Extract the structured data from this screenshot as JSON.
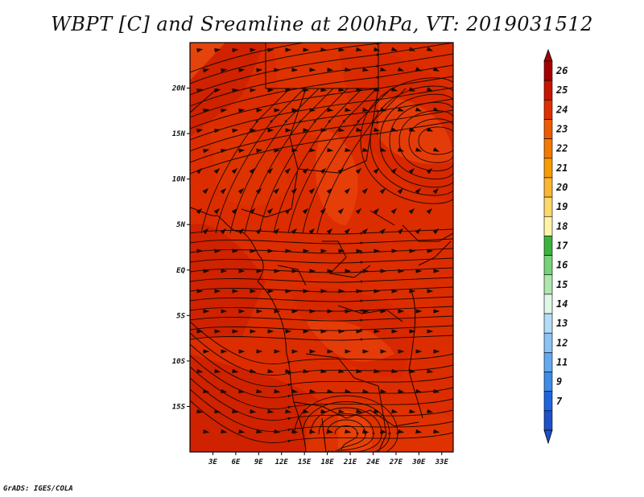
{
  "title": "WBPT [C] and Sreamline at 200hPa, VT: 2019031512",
  "credit": "GrADS: IGES/COLA",
  "chart_data": {
    "type": "heatmap",
    "variable": "WBPT [C]",
    "overlay": "Sreamline",
    "level": "200hPa",
    "valid_time": "2019031512",
    "x_ticks": [
      "3E",
      "6E",
      "9E",
      "12E",
      "15E",
      "18E",
      "21E",
      "24E",
      "27E",
      "30E",
      "33E"
    ],
    "x_tick_values": [
      3,
      6,
      9,
      12,
      15,
      18,
      21,
      24,
      27,
      30,
      33
    ],
    "y_ticks": [
      "20N",
      "15N",
      "10N",
      "5N",
      "EQ",
      "5S",
      "10S",
      "15S"
    ],
    "y_tick_values": [
      20,
      15,
      10,
      5,
      0,
      -5,
      -10,
      -15
    ],
    "xlim": [
      0,
      34.5
    ],
    "ylim": [
      -20,
      25
    ],
    "colorbar": {
      "labels": [
        "26",
        "25",
        "24",
        "23",
        "22",
        "21",
        "20",
        "19",
        "18",
        "17",
        "16",
        "15",
        "14",
        "13",
        "12",
        "11",
        "9",
        "7"
      ],
      "colors": [
        "#a50000",
        "#c81400",
        "#e12d00",
        "#f05a00",
        "#f57800",
        "#f99a00",
        "#fbb531",
        "#fdd76a",
        "#fff4a6",
        "#3cb43c",
        "#78d278",
        "#aee6ae",
        "#e0f6e6",
        "#b4dcf8",
        "#8cc3f5",
        "#64a8f0",
        "#3c8ce8",
        "#1e64dc",
        "#1e50c8"
      ]
    },
    "field_colors": [
      "#d52400",
      "#e03800",
      "#ee4c0e",
      "#c41a00",
      "#f56015"
    ],
    "grid": false
  }
}
